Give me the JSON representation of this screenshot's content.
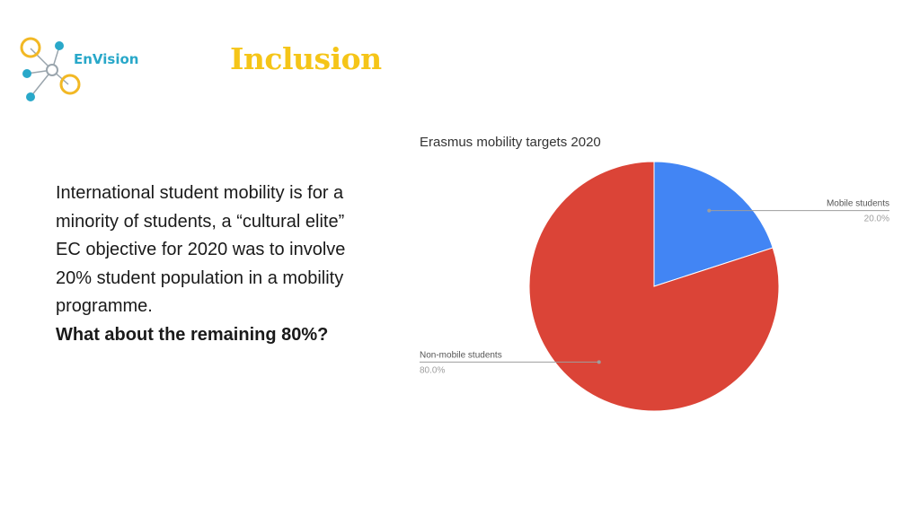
{
  "brand": {
    "name": "EnVision",
    "logo_color": "#29a8c9",
    "ring_color": "#f2b824"
  },
  "slide": {
    "title": "Inclusion",
    "title_color": "#f5c518",
    "paragraph_lines": [
      "International student mobility is for a",
      "minority of students, a “cultural elite”",
      "EC objective for 2020 was to involve",
      "20% student population in a mobility",
      "programme."
    ],
    "emphasis": "What about the remaining 80%?"
  },
  "chart_data": {
    "type": "pie",
    "title": "Erasmus mobility targets 2020",
    "slices": [
      {
        "label": "Mobile students",
        "value": 20.0,
        "percent_label": "20.0%",
        "color": "#4285f4"
      },
      {
        "label": "Non-mobile students",
        "value": 80.0,
        "percent_label": "80.0%",
        "color": "#db4437"
      }
    ],
    "legend": "callout-labels"
  }
}
